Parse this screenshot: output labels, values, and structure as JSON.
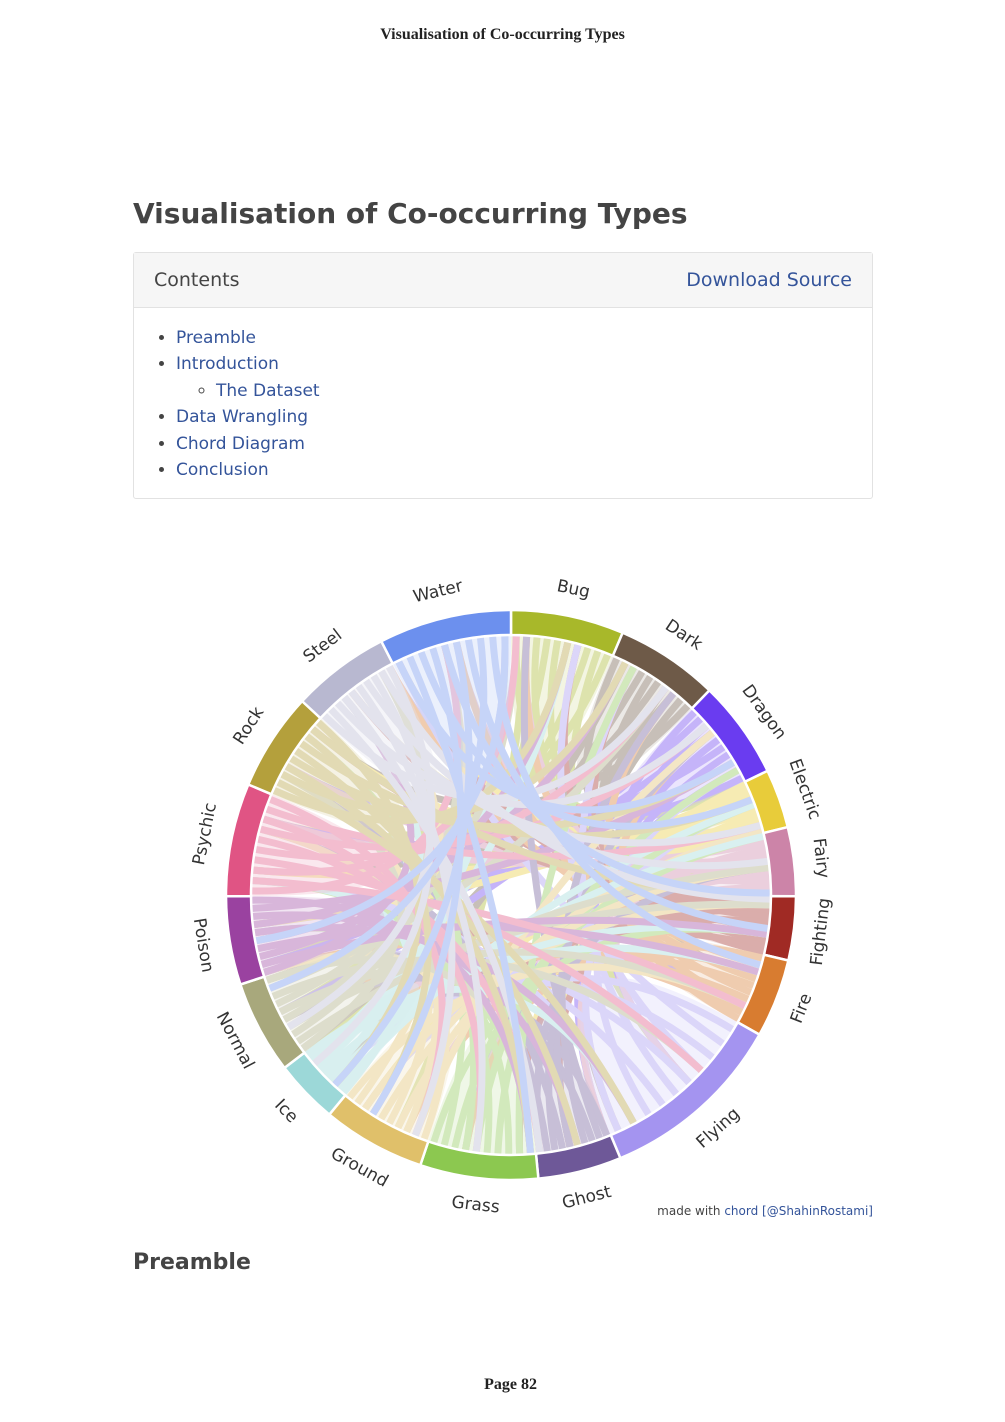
{
  "header": {
    "running_title": "Visualisation of Co-occurring Types"
  },
  "page": {
    "title": "Visualisation of Co-occurring Types",
    "contents": {
      "heading": "Contents",
      "download": "Download Source",
      "items": [
        {
          "label": "Preamble"
        },
        {
          "label": "Introduction",
          "children": [
            {
              "label": "The Dataset"
            }
          ]
        },
        {
          "label": "Data Wrangling"
        },
        {
          "label": "Chord Diagram"
        },
        {
          "label": "Conclusion"
        }
      ]
    },
    "figure": {
      "type": "chord",
      "groups": [
        {
          "name": "Bug",
          "color": "#a8b82a",
          "value": 23
        },
        {
          "name": "Dark",
          "color": "#6e5a48",
          "value": 21
        },
        {
          "name": "Dragon",
          "color": "#6a3cf0",
          "value": 20
        },
        {
          "name": "Electric",
          "color": "#e8cc3a",
          "value": 12
        },
        {
          "name": "Fairy",
          "color": "#cc84a8",
          "value": 14
        },
        {
          "name": "Fighting",
          "color": "#a02a24",
          "value": 13
        },
        {
          "name": "Fire",
          "color": "#d87c30",
          "value": 16
        },
        {
          "name": "Flying",
          "color": "#a494f0",
          "value": 38
        },
        {
          "name": "Ghost",
          "color": "#6e5898",
          "value": 17
        },
        {
          "name": "Grass",
          "color": "#8cc850",
          "value": 24
        },
        {
          "name": "Ground",
          "color": "#e0c06a",
          "value": 21
        },
        {
          "name": "Ice",
          "color": "#9cd8d8",
          "value": 13
        },
        {
          "name": "Normal",
          "color": "#a8a87c",
          "value": 19
        },
        {
          "name": "Poison",
          "color": "#9a42a0",
          "value": 18
        },
        {
          "name": "Psychic",
          "color": "#e05484",
          "value": 23
        },
        {
          "name": "Rock",
          "color": "#b4a03c",
          "value": 20
        },
        {
          "name": "Steel",
          "color": "#b8b8d0",
          "value": 20
        },
        {
          "name": "Water",
          "color": "#6c90ee",
          "value": 27
        }
      ],
      "credit": {
        "prefix": "made with",
        "link": "chord",
        "handle": "[@ShahinRostami]"
      }
    },
    "section": "Preamble"
  },
  "footer": "Page 82"
}
